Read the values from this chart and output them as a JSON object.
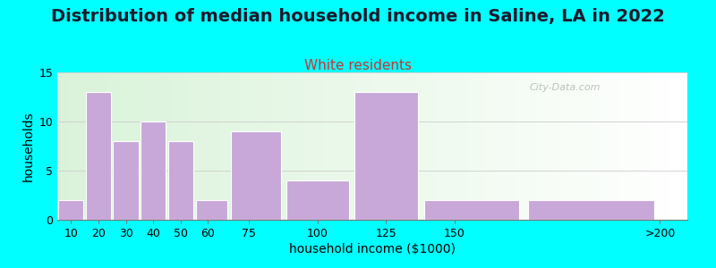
{
  "title": "Distribution of median household income in Saline, LA in 2022",
  "subtitle": "White residents",
  "xlabel": "household income ($1000)",
  "ylabel": "households",
  "background_outer": "#00FFFF",
  "background_inner_left": "#d8f0d0",
  "background_inner_right": "#ffffff",
  "bar_color": "#c8a8d8",
  "bar_edge_color": "#ffffff",
  "categories": [
    "10",
    "20",
    "30",
    "40",
    "50",
    "60",
    "75",
    "100",
    "125",
    "150",
    ">200"
  ],
  "bin_edges": [
    5,
    15,
    25,
    35,
    45,
    55,
    67.5,
    87.5,
    112.5,
    137.5,
    175,
    225
  ],
  "values": [
    2,
    13,
    8,
    10,
    8,
    2,
    9,
    4,
    13,
    2,
    2
  ],
  "tick_positions": [
    10,
    20,
    30,
    40,
    50,
    60,
    75,
    100,
    125,
    150,
    225
  ],
  "tick_labels": [
    "10",
    "20",
    "30",
    "40",
    "50",
    "60",
    "75",
    "100",
    "125",
    "150",
    ">200"
  ],
  "ylim": [
    0,
    15
  ],
  "yticks": [
    0,
    5,
    10,
    15
  ],
  "xlim": [
    5,
    235
  ],
  "title_fontsize": 14,
  "subtitle_fontsize": 11,
  "subtitle_color": "#cc3333",
  "axis_label_fontsize": 10,
  "tick_fontsize": 9,
  "title_color": "#1a1a2e",
  "watermark": "City-Data.com"
}
